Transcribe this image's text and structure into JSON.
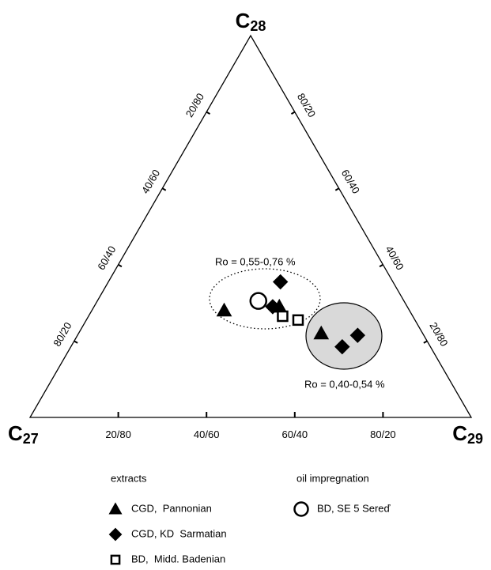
{
  "chart_data": {
    "type": "ternary",
    "vertex_labels": [
      {
        "text": "C",
        "sub": "27"
      },
      {
        "text": "C",
        "sub": "28"
      },
      {
        "text": "C",
        "sub": "29"
      }
    ],
    "bottom_ticks": [
      {
        "value": 20,
        "label": "20/80"
      },
      {
        "value": 40,
        "label": "40/60"
      },
      {
        "value": 60,
        "label": "60/40"
      },
      {
        "value": 80,
        "label": "80/20"
      }
    ],
    "left_ticks": [
      {
        "value": 20,
        "label": "80/20"
      },
      {
        "value": 40,
        "label": "60/40"
      },
      {
        "value": 60,
        "label": "40/60"
      },
      {
        "value": 80,
        "label": "20/80"
      }
    ],
    "right_ticks": [
      {
        "value": 20,
        "label": "20/80"
      },
      {
        "value": 40,
        "label": "40/60"
      },
      {
        "value": 60,
        "label": "60/40"
      },
      {
        "value": 80,
        "label": "80/20"
      }
    ],
    "annotations": [
      "Ro = 0,55-0,76 %",
      "Ro = 0,40-0,54 %"
    ],
    "legend_groups": [
      "extracts",
      "oil impregnation"
    ],
    "series": [
      {
        "name": "CGD,  Pannonian",
        "marker": "triangle",
        "filled": true,
        "color": "#000000",
        "group": 0,
        "values": [
          [
            42,
            28,
            30
          ],
          [
            29,
            29,
            42
          ],
          [
            23,
            22,
            55
          ]
        ]
      },
      {
        "name": "CGD, KD  Sarmatian",
        "marker": "diamond",
        "filled": true,
        "color": "#000000",
        "group": 0,
        "values": [
          [
            25.5,
            35.5,
            39
          ],
          [
            30.5,
            29,
            40.5
          ],
          [
            20,
            18.5,
            61.5
          ],
          [
            15,
            21.5,
            63.5
          ]
        ]
      },
      {
        "name": "BD,  Midd. Badenian",
        "marker": "square",
        "filled": false,
        "color": "#000000",
        "group": 0,
        "values": [
          [
            29.5,
            26.5,
            44
          ],
          [
            26.5,
            25.5,
            48
          ]
        ]
      },
      {
        "name": "BD, SE 5 Sereď",
        "marker": "circle",
        "filled": false,
        "color": "#000000",
        "group": 1,
        "values": [
          [
            33,
            30.5,
            36.5
          ]
        ]
      }
    ]
  }
}
